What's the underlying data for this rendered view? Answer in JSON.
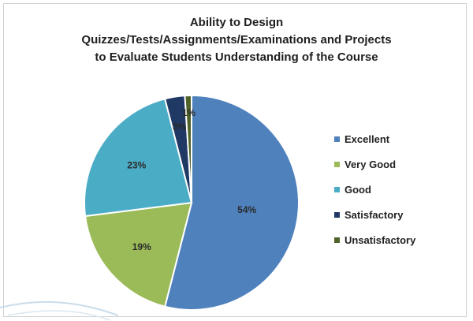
{
  "chart_data": {
    "type": "pie",
    "title_lines": [
      "Ability to Design",
      "Quizzes/Tests/Assignments/Examinations and Projects",
      "to Evaluate Students Understanding of the Course"
    ],
    "slices": [
      {
        "label": "Excellent",
        "value": 54,
        "display": "54%",
        "color": "#4f81bd"
      },
      {
        "label": "Very Good",
        "value": 19,
        "display": "19%",
        "color": "#9bbb59"
      },
      {
        "label": "Good",
        "value": 23,
        "display": "23%",
        "color": "#4bacc6"
      },
      {
        "label": "Satisfactory",
        "value": 3,
        "display": "3%",
        "color": "#1f3864"
      },
      {
        "label": "Unsatisfactory",
        "value": 1,
        "display": "1%",
        "color": "#4f6228"
      }
    ],
    "legend_position": "right"
  }
}
